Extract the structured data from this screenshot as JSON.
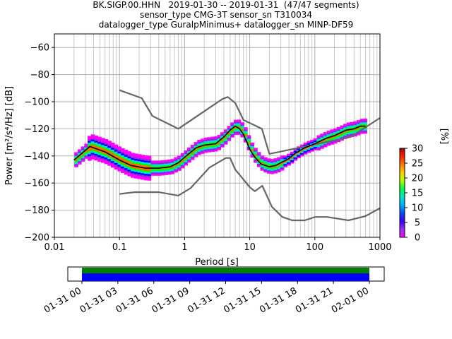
{
  "chart_data": {
    "type": "heatmap",
    "title_lines": [
      "BK.SIGP.00.HHN   2019-01-30 -- 2019-01-31  (47/47 segments)",
      "sensor_type CMG-3T sensor_sn T310034",
      "datalogger_type GuralpMinimus+ datalogger_sn MINP-DF59"
    ],
    "xlabel": "Period [s]",
    "ylabel": "Power [m²/s⁴/Hz] [dB]",
    "xscale": "log",
    "xlim": [
      0.01,
      1000
    ],
    "ylim": [
      -200,
      -50
    ],
    "x_ticks": [
      0.01,
      0.1,
      1,
      10,
      100,
      1000
    ],
    "x_tick_labels": [
      "0.01",
      "0.1",
      "1",
      "10",
      "100",
      "1000"
    ],
    "y_ticks": [
      -200,
      -180,
      -160,
      -140,
      -120,
      -100,
      -80,
      -60
    ],
    "y_tick_labels": [
      "−200",
      "−180",
      "−160",
      "−140",
      "−120",
      "−100",
      "−80",
      "−60"
    ],
    "grid": true,
    "colorbar": {
      "label": "[%]",
      "range": [
        0,
        30
      ],
      "ticks": [
        0,
        5,
        10,
        15,
        20,
        25,
        30
      ],
      "tick_labels": [
        "0",
        "5",
        "10",
        "15",
        "20",
        "25",
        "30"
      ]
    },
    "series": [
      {
        "role": "noise-model-upper",
        "color": "#666666",
        "x": [
          0.1,
          0.22,
          0.32,
          0.8,
          3.8,
          4.6,
          6.0,
          8.0,
          15.4,
          20.0,
          354,
          1000
        ],
        "y": [
          -91.5,
          -97.4,
          -110.5,
          -120,
          -98,
          -96.5,
          -101,
          -113.5,
          -120,
          -138.5,
          -126,
          -112
        ]
      },
      {
        "role": "noise-model-lower",
        "color": "#666666",
        "x": [
          0.1,
          0.17,
          0.4,
          0.8,
          1.24,
          2.4,
          4.3,
          5.0,
          6.0,
          10.0,
          12.0,
          15.6,
          21.9,
          31.6,
          45.0,
          70.0,
          101,
          154,
          328,
          600,
          1000
        ],
        "y": [
          -168,
          -166.7,
          -166.7,
          -169.2,
          -163.7,
          -148.6,
          -141.5,
          -141.5,
          -150,
          -163,
          -166,
          -162,
          -177.5,
          -185,
          -187.5,
          -187.5,
          -185,
          -185,
          -187.5,
          -184.4,
          -178.5
        ]
      },
      {
        "role": "median",
        "color": "#000000",
        "x": [
          0.02,
          0.035,
          0.06,
          0.1,
          0.15,
          0.25,
          0.4,
          0.6,
          0.8,
          1.0,
          1.5,
          2.0,
          3.0,
          4.0,
          5.0,
          6.0,
          7.0,
          8.0,
          10,
          12,
          15,
          20,
          25,
          30,
          40,
          50,
          70,
          100,
          150,
          200,
          300,
          400,
          500,
          600
        ],
        "y": [
          -143,
          -133,
          -137,
          -143,
          -147,
          -149,
          -149,
          -148,
          -145,
          -141,
          -134,
          -132,
          -131,
          -126,
          -121,
          -118,
          -120,
          -124,
          -135,
          -141,
          -146,
          -148,
          -147,
          -145,
          -142,
          -138,
          -134,
          -131,
          -127,
          -125,
          -121,
          -120,
          -118,
          -118
        ]
      }
    ],
    "density_bands": [
      {
        "label": "20-30",
        "color": "#ff6a00",
        "x": [
          0.02,
          0.04,
          0.1,
          0.3,
          1,
          3,
          6,
          10,
          20,
          50,
          100,
          300,
          600
        ],
        "y_center": [
          -143,
          -133,
          -143,
          -149,
          -141,
          -131,
          -118,
          -135,
          -148,
          -138,
          -131,
          -121,
          -118
        ],
        "half_width": [
          1,
          1,
          1,
          1,
          1,
          1,
          1,
          1,
          1,
          1,
          1,
          1,
          1
        ]
      }
    ],
    "timeline": {
      "tick_labels": [
        "01-31 00",
        "01-31 03",
        "01-31 06",
        "01-31 09",
        "01-31 12",
        "01-31 15",
        "01-31 18",
        "01-31 21",
        "02-01 00"
      ],
      "bars": [
        {
          "color": "#008000",
          "from_hour": 0,
          "to_hour": 24
        },
        {
          "color": "#0000ff",
          "from_hour": 0,
          "to_hour": 24
        }
      ]
    }
  }
}
